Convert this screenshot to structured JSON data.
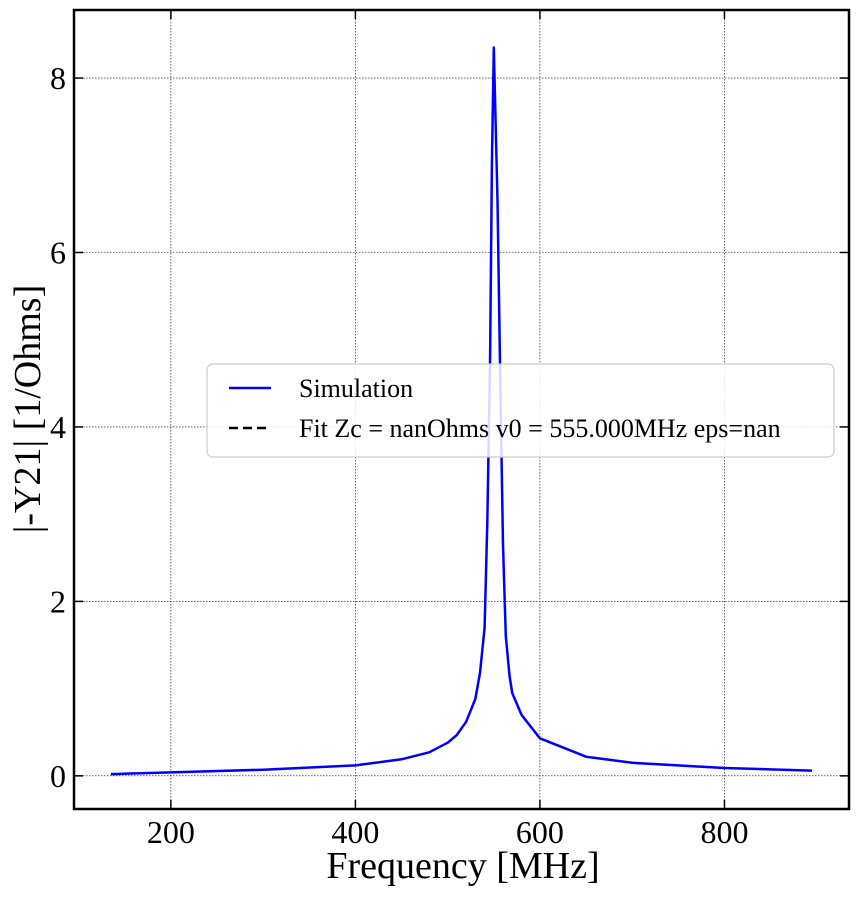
{
  "chart_data": {
    "type": "line",
    "xlabel": "Frequency [MHz]",
    "ylabel": "|-Y21| [1/Ohms]",
    "xlim": [
      95,
      935
    ],
    "ylim": [
      -0.38,
      8.78
    ],
    "xticks": [
      200,
      400,
      600,
      800
    ],
    "yticks": [
      0,
      2,
      4,
      6,
      8
    ],
    "grid": true,
    "legend_position": "center-right",
    "series": [
      {
        "name": "Simulation",
        "color": "#0000ff",
        "style": "solid",
        "x": [
          135,
          200,
          300,
          400,
          450,
          480,
          500,
          510,
          520,
          530,
          535,
          540,
          543,
          546,
          548,
          550,
          552,
          554,
          557,
          560,
          563,
          567,
          570,
          580,
          600,
          650,
          700,
          800,
          895
        ],
        "y": [
          0.02,
          0.04,
          0.07,
          0.12,
          0.19,
          0.27,
          0.38,
          0.47,
          0.62,
          0.88,
          1.18,
          1.7,
          2.9,
          4.8,
          7.0,
          8.35,
          7.5,
          6.6,
          4.5,
          2.65,
          1.6,
          1.15,
          0.95,
          0.7,
          0.43,
          0.22,
          0.15,
          0.09,
          0.06
        ]
      },
      {
        "name": "Fit Zc = nanOhms v0 = 555.000MHz eps=nan",
        "color": "#000000",
        "style": "dashed",
        "x": [],
        "y": []
      }
    ]
  }
}
